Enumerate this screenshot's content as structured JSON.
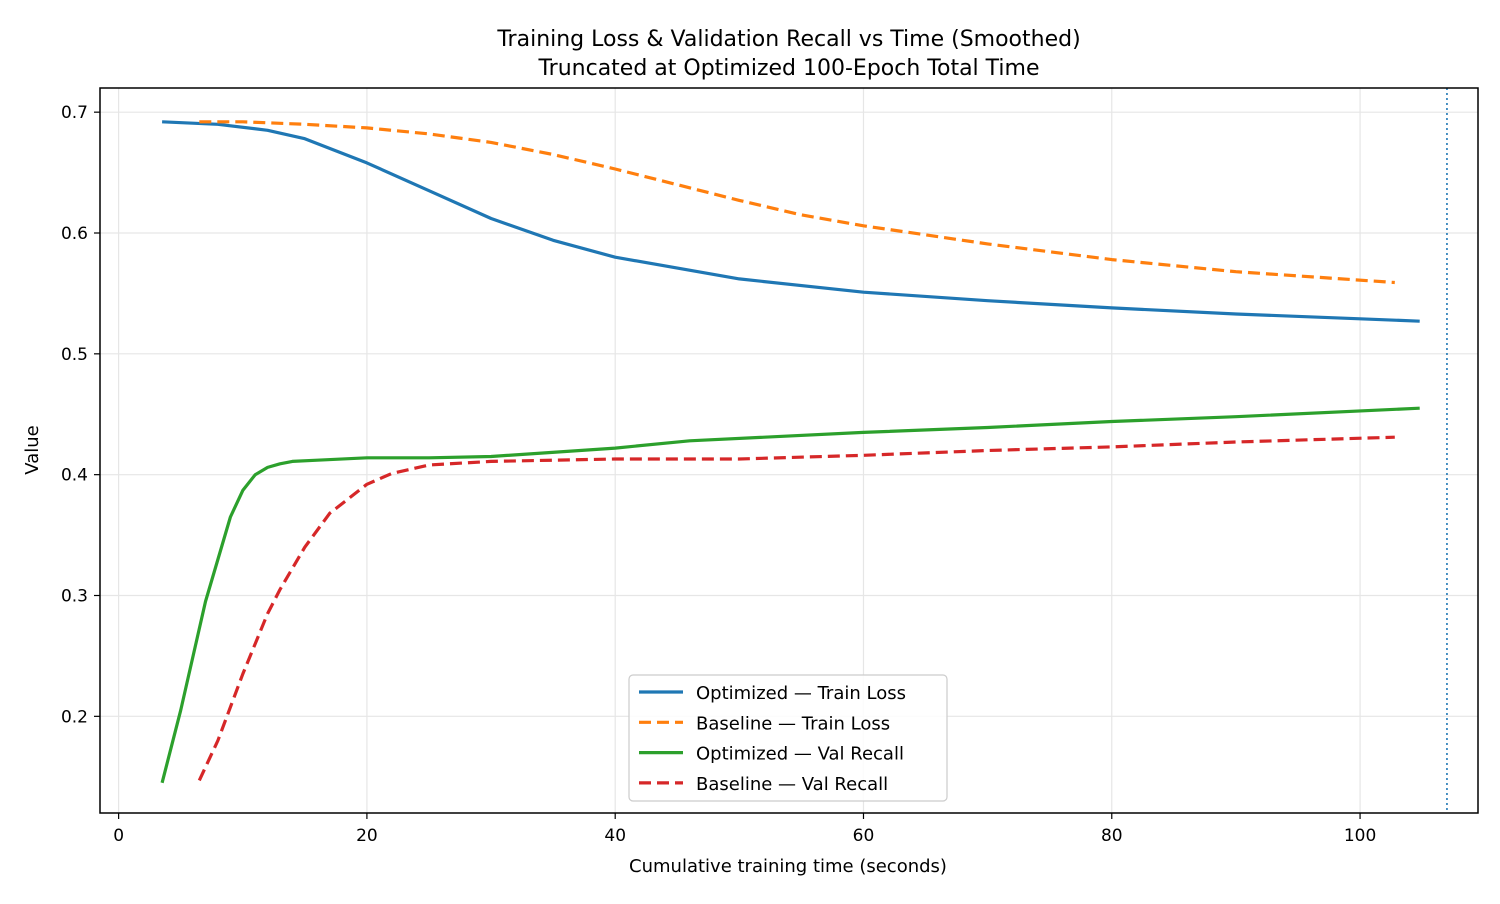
{
  "chart_data": {
    "type": "line",
    "title": "Training Loss & Validation Recall vs Time (Smoothed)",
    "subtitle": "Truncated at Optimized 100-Epoch Total Time",
    "xlabel": "Cumulative training time (seconds)",
    "ylabel": "Value",
    "xlim": [
      -1.5,
      109.5
    ],
    "ylim": [
      0.12,
      0.72
    ],
    "xticks": [
      0,
      20,
      40,
      60,
      80,
      100
    ],
    "yticks": [
      0.2,
      0.3,
      0.4,
      0.5,
      0.6,
      0.7
    ],
    "xtick_labels": [
      "0",
      "20",
      "40",
      "60",
      "80",
      "100"
    ],
    "ytick_labels": [
      "0.2",
      "0.3",
      "0.4",
      "0.5",
      "0.6",
      "0.7"
    ],
    "grid": true,
    "legend_position": "bottom-center",
    "vertical_reference_line": {
      "x": 107,
      "style": "dotted",
      "color": "#1f77b4"
    },
    "series": [
      {
        "name": "Optimized — Train Loss",
        "color": "#1f77b4",
        "dash": "solid",
        "x": [
          3.5,
          8,
          12,
          15,
          20,
          25,
          30,
          35,
          40,
          50,
          60,
          70,
          80,
          90,
          100,
          104.8
        ],
        "y": [
          0.692,
          0.69,
          0.685,
          0.678,
          0.658,
          0.635,
          0.612,
          0.594,
          0.58,
          0.562,
          0.551,
          0.544,
          0.538,
          0.533,
          0.529,
          0.527
        ]
      },
      {
        "name": "Baseline — Train Loss",
        "color": "#ff7f0e",
        "dash": "dashed",
        "x": [
          6.5,
          10,
          15,
          20,
          25,
          30,
          35,
          40,
          45,
          50,
          55,
          60,
          70,
          80,
          90,
          102.8
        ],
        "y": [
          0.692,
          0.692,
          0.69,
          0.687,
          0.682,
          0.675,
          0.665,
          0.653,
          0.64,
          0.627,
          0.615,
          0.606,
          0.591,
          0.578,
          0.568,
          0.559
        ]
      },
      {
        "name": "Optimized — Val Recall",
        "color": "#2ca02c",
        "dash": "solid",
        "x": [
          3.5,
          5,
          7,
          9,
          10,
          11,
          12,
          13,
          14,
          16,
          20,
          25,
          30,
          40,
          46,
          60,
          70,
          80,
          90,
          104.8
        ],
        "y": [
          0.145,
          0.205,
          0.295,
          0.365,
          0.387,
          0.4,
          0.406,
          0.409,
          0.411,
          0.412,
          0.414,
          0.414,
          0.415,
          0.422,
          0.428,
          0.435,
          0.439,
          0.444,
          0.448,
          0.455
        ]
      },
      {
        "name": "Baseline — Val Recall",
        "color": "#d62728",
        "dash": "dashed",
        "x": [
          6.5,
          8,
          10,
          12,
          13,
          15,
          17,
          20,
          22,
          25,
          30,
          40,
          50,
          60,
          70,
          80,
          90,
          102.8
        ],
        "y": [
          0.147,
          0.18,
          0.235,
          0.285,
          0.305,
          0.34,
          0.368,
          0.392,
          0.401,
          0.408,
          0.411,
          0.413,
          0.413,
          0.416,
          0.42,
          0.423,
          0.427,
          0.431
        ]
      }
    ]
  }
}
